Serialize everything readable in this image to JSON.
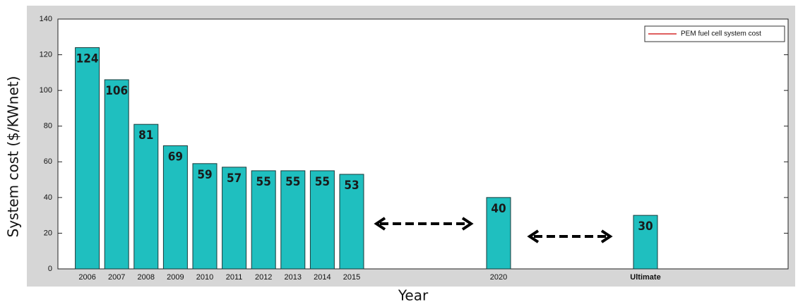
{
  "chart_data": {
    "type": "bar",
    "x_label": "Year",
    "y_label": "System cost ($/KWnet)",
    "categories": [
      "2006",
      "2007",
      "2008",
      "2009",
      "2010",
      "2011",
      "2012",
      "2013",
      "2014",
      "2015",
      null,
      null,
      null,
      null,
      "2020",
      null,
      null,
      null,
      null,
      "Ultimate"
    ],
    "series": [
      {
        "name": "PEM fuel cell system cost",
        "color": "#1fbfbf",
        "values": [
          124,
          106,
          81,
          69,
          59,
          57,
          55,
          55,
          55,
          53,
          null,
          null,
          null,
          null,
          40,
          null,
          null,
          null,
          null,
          30
        ]
      }
    ],
    "legend_line_color": "#cc0000",
    "legend": "upper right",
    "ylim": [
      0,
      140
    ],
    "yticks": [
      0,
      20,
      40,
      60,
      80,
      100,
      120,
      140
    ],
    "grid": false
  }
}
